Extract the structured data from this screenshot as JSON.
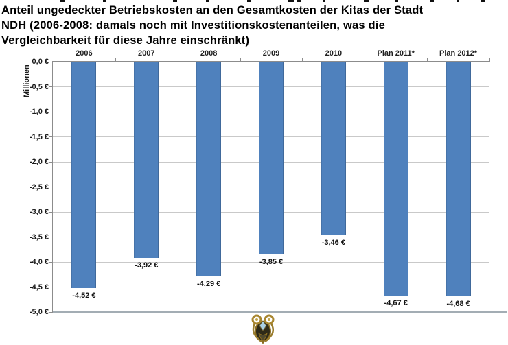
{
  "title": {
    "line1": "Anteil ungedeckter Betriebskosten an den Gesamtkosten der Kitas der Stadt",
    "line2": "NDH (2006-2008: damals noch mit Investitionskostenanteilen, was die",
    "line3": "Vergleichbarkeit für diese Jahre einschränkt)"
  },
  "chart_data": {
    "type": "bar",
    "title": "Anteil ungedeckter Betriebskosten an den Gesamtkosten der Kitas der Stadt NDH (2006-2008: damals noch mit Investitionskostenanteilen, was die Vergleichbarkeit für diese Jahre einschränkt)",
    "categories": [
      "2006",
      "2007",
      "2008",
      "2009",
      "2010",
      "Plan 2011*",
      "Plan 2012*"
    ],
    "values": [
      -4.52,
      -3.92,
      -4.29,
      -3.85,
      -3.46,
      -4.67,
      -4.68
    ],
    "value_labels": [
      "-4,52 €",
      "-3,92 €",
      "-4,29 €",
      "-3,85 €",
      "-3,46 €",
      "-4,67 €",
      "-4,68 €"
    ],
    "xlabel": "",
    "ylabel": "Millionen",
    "y_ticks": [
      "0,0 €",
      "-0,5 €",
      "-1,0 €",
      "-1,5 €",
      "-2,0 €",
      "-2,5 €",
      "-3,0 €",
      "-3,5 €",
      "-4,0 €",
      "-4,5 €",
      "-5,0 €"
    ],
    "ylim": [
      -5.0,
      0.0
    ],
    "grid": true,
    "legend": "none",
    "bar_color": "#4f81bd",
    "axis_color": "#8c8c8c",
    "gridline_color": "#c9c9c9"
  },
  "footer": {
    "icon": "coat-of-arms"
  }
}
